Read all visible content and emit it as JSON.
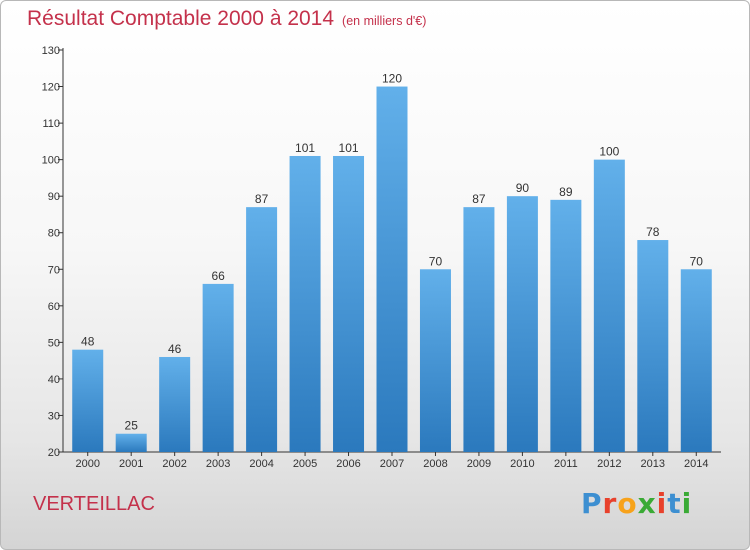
{
  "title": "Résultat Comptable 2000 à 2014",
  "unit": "(en milliers d'€)",
  "commune": "VERTEILLAC",
  "logo": {
    "text": "Proxiti",
    "letters": [
      "P",
      "r",
      "o",
      "x",
      "i",
      "t",
      "i"
    ],
    "colors": [
      "#3d8fd1",
      "#e8412c",
      "#f7a21b",
      "#3aaa35",
      "#e8412c",
      "#3d8fd1",
      "#3aaa35"
    ]
  },
  "colors": {
    "bar_light": "#62b0ea",
    "bar_dark": "#2b79bd",
    "title": "#c4314b"
  },
  "chart_data": {
    "type": "bar",
    "categories": [
      "2000",
      "2001",
      "2002",
      "2003",
      "2004",
      "2005",
      "2006",
      "2007",
      "2008",
      "2009",
      "2010",
      "2011",
      "2012",
      "2013",
      "2014"
    ],
    "values": [
      48,
      25,
      46,
      66,
      87,
      101,
      101,
      120,
      70,
      87,
      90,
      89,
      100,
      78,
      70
    ],
    "ylim": [
      20,
      130
    ],
    "yticks": [
      20,
      30,
      40,
      50,
      60,
      70,
      80,
      90,
      100,
      110,
      120,
      130
    ],
    "grid": false,
    "data_labels": true
  }
}
